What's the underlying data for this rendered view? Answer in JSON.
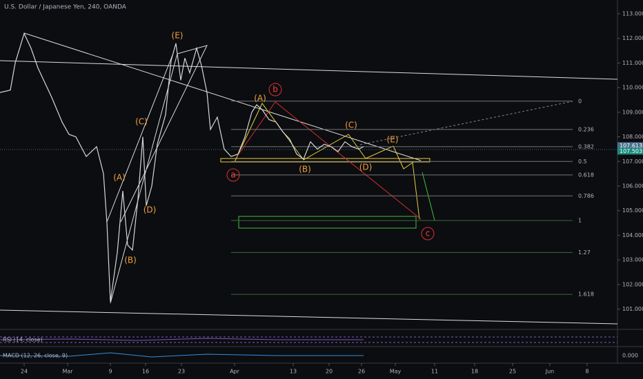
{
  "chart_data": {
    "type": "line",
    "title": "U.S. Dollar / Japanese Yen, 240, OANDA",
    "x": [
      -3.5,
      -2,
      -1.3,
      0,
      1,
      2,
      3,
      4,
      5.5,
      6.5,
      7.5,
      9,
      10.5,
      11.5,
      12,
      12.5,
      13.5,
      14.3,
      15,
      15.7,
      16.5,
      17.2,
      17.7,
      18.5,
      19.3,
      20.5,
      21.3,
      22,
      22.7,
      23.3,
      24,
      25,
      25.7,
      26.5,
      27,
      28,
      29,
      30,
      31,
      32,
      33,
      33.7,
      34.5,
      35.5,
      36.5,
      37.5,
      38.5,
      39.5,
      40.5,
      41.5,
      42.5,
      43.5,
      44.5,
      45.5,
      46.5,
      47.5,
      48.5,
      49.2
    ],
    "values": [
      109.8,
      109.9,
      111.0,
      112.2,
      111.6,
      110.8,
      110.2,
      109.6,
      108.6,
      108.1,
      108.0,
      107.2,
      107.6,
      106.5,
      104.5,
      101.3,
      103.3,
      105.8,
      103.6,
      103.4,
      105.5,
      108.0,
      105.2,
      106.0,
      107.7,
      108.9,
      111.1,
      111.8,
      110.3,
      111.2,
      110.6,
      111.6,
      110.9,
      109.8,
      108.3,
      108.8,
      107.5,
      107.2,
      107.3,
      108.0,
      109.0,
      109.3,
      109.1,
      108.7,
      108.6,
      108.2,
      107.9,
      107.3,
      107.1,
      107.8,
      107.5,
      107.7,
      107.6,
      107.4,
      107.8,
      107.6,
      107.5,
      107.6
    ],
    "color": "#d8d8d8",
    "xlim": [
      -3.5,
      86
    ],
    "xticks": [
      {
        "value": 0,
        "label": "24"
      },
      {
        "value": 6.3,
        "label": "Mar"
      },
      {
        "value": 12.5,
        "label": "9"
      },
      {
        "value": 17.6,
        "label": "16"
      },
      {
        "value": 22.8,
        "label": "23"
      },
      {
        "value": 30.5,
        "label": "Apr"
      },
      {
        "value": 39,
        "label": "13"
      },
      {
        "value": 44.2,
        "label": "20"
      },
      {
        "value": 48.9,
        "label": "26"
      },
      {
        "value": 53.8,
        "label": "May"
      },
      {
        "value": 59.5,
        "label": "11"
      },
      {
        "value": 65.3,
        "label": "18"
      },
      {
        "value": 70.8,
        "label": "25"
      },
      {
        "value": 76.2,
        "label": "Jun"
      },
      {
        "value": 81.6,
        "label": "8"
      }
    ],
    "ylim": [
      100.4,
      113.56
    ],
    "yticks": [
      {
        "value": 101,
        "label": "101.000"
      },
      {
        "value": 102,
        "label": "102.000"
      },
      {
        "value": 103,
        "label": "103.000"
      },
      {
        "value": 104,
        "label": "104.000"
      },
      {
        "value": 105,
        "label": "105.000"
      },
      {
        "value": 106,
        "label": "106.000"
      },
      {
        "value": 107,
        "label": "107.000"
      },
      {
        "value": 108,
        "label": "108.000"
      },
      {
        "value": 109,
        "label": "109.000"
      },
      {
        "value": 110,
        "label": "110.000"
      },
      {
        "value": 111,
        "label": "111.000"
      },
      {
        "value": 112,
        "label": "112.000"
      },
      {
        "value": 113,
        "label": "113.000"
      }
    ],
    "price_labels": [
      {
        "value": 107.613,
        "label": "107.613"
      },
      {
        "value": 107.503,
        "label": "107.503"
      }
    ],
    "fib_levels": [
      {
        "label": "0",
        "value": 109.45
      },
      {
        "label": "0.236",
        "value": 108.3
      },
      {
        "label": "0.382",
        "value": 107.6
      },
      {
        "label": "0.5",
        "value": 107.0
      },
      {
        "label": "0.618",
        "value": 106.45
      },
      {
        "label": "0.786",
        "value": 105.6
      },
      {
        "label": "1",
        "value": 104.6
      },
      {
        "label": "1.27",
        "value": 103.3
      },
      {
        "label": "1.618",
        "value": 101.6
      }
    ],
    "wave_labels": [
      "(E)",
      "(C)",
      "(A)",
      "(D)",
      "(B)",
      "(A)",
      "b",
      "(C)",
      "(E)",
      "a",
      "(B)",
      "(D)",
      "c"
    ],
    "rsi_label": "RSI (14, close)",
    "macd_label": "MACD (12, 26, close, 9)",
    "macd_axis": "0.000"
  }
}
